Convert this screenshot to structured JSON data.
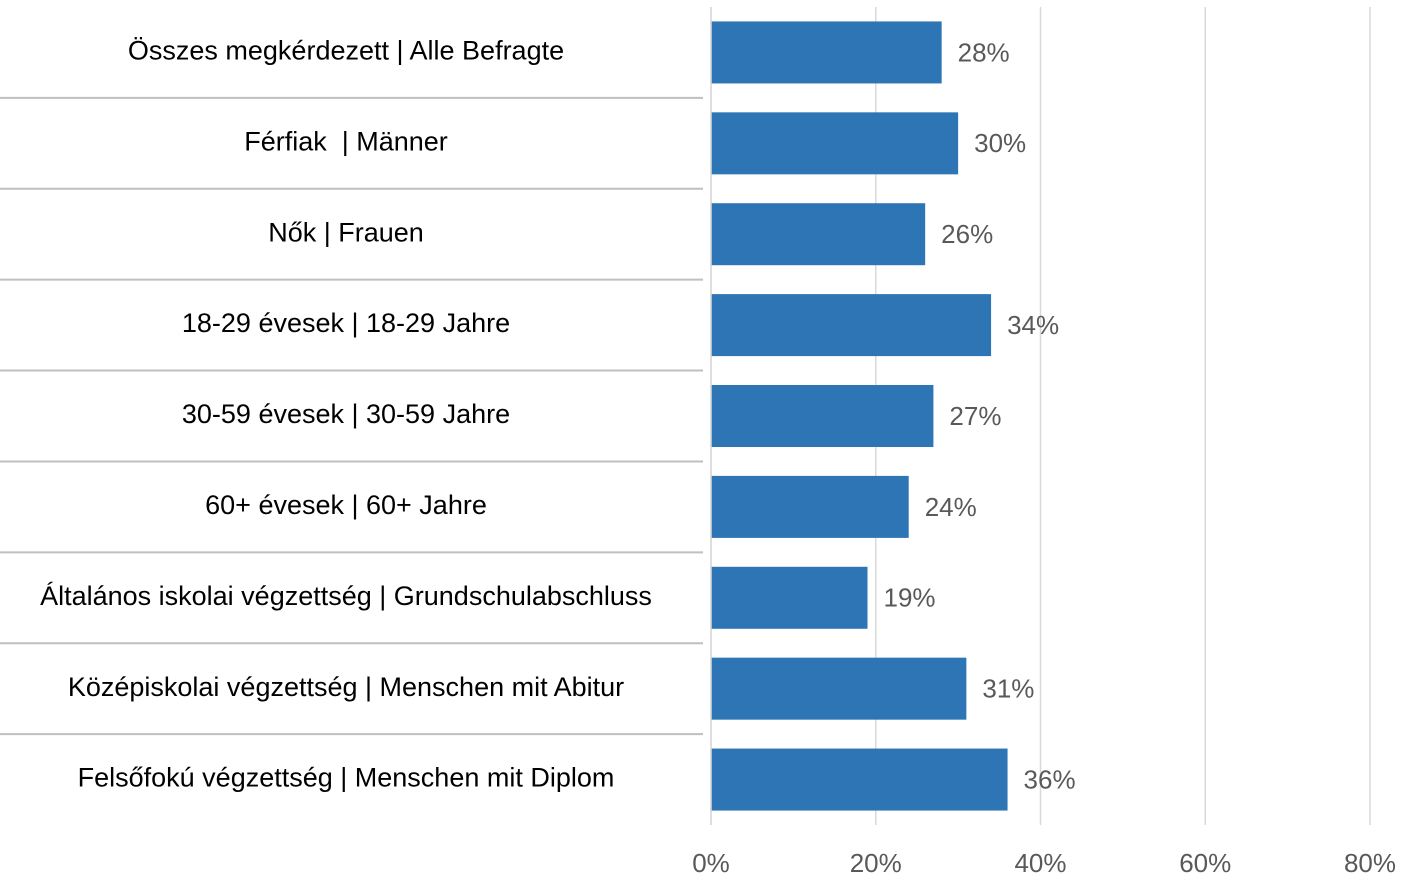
{
  "chart_data": {
    "type": "bar",
    "orientation": "horizontal",
    "categories": [
      "Összes megkérdezett | Alle Befragte",
      "Férfiak  | Männer",
      "Nők | Frauen",
      "18-29 évesek | 18-29 Jahre",
      "30-59 évesek | 30-59 Jahre",
      "60+ évesek | 60+ Jahre",
      "Általános iskolai végzettség | Grundschulabschluss",
      "Középiskolai végzettség | Menschen mit Abitur",
      "Felsőfokú végzettség | Menschen mit Diplom"
    ],
    "values": [
      28,
      30,
      26,
      34,
      27,
      24,
      19,
      31,
      36
    ],
    "value_labels": [
      "28%",
      "30%",
      "26%",
      "34%",
      "27%",
      "24%",
      "19%",
      "31%",
      "36%"
    ],
    "color": "#2e75b6",
    "xlim": [
      0,
      80
    ],
    "xticks": [
      {
        "value": 0,
        "label": "0%"
      },
      {
        "value": 20,
        "label": "20%"
      },
      {
        "value": 40,
        "label": "40%"
      },
      {
        "value": 60,
        "label": "60%"
      },
      {
        "value": 80,
        "label": "80%"
      }
    ],
    "grid": true
  }
}
